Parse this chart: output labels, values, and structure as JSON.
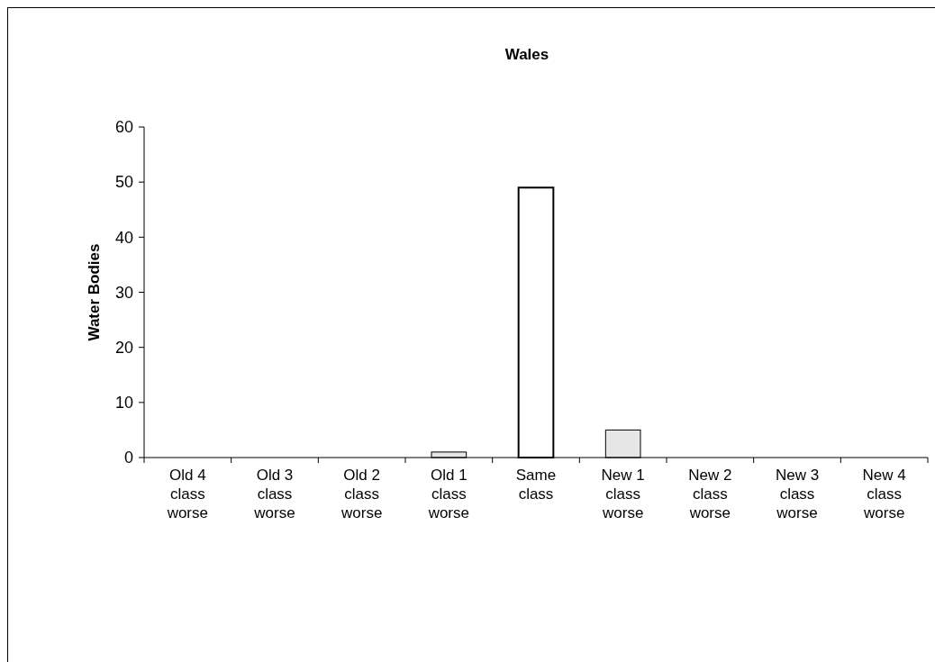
{
  "chart_data": {
    "type": "bar",
    "title": "Wales",
    "ylabel": "Water Bodies",
    "categories": [
      "Old 4 class worse",
      "Old 3 class worse",
      "Old 2 class worse",
      "Old 1 class worse",
      "Same class",
      "New 1 class worse",
      "New 2 class worse",
      "New 3 class worse",
      "New 4 class worse"
    ],
    "values": [
      0,
      0,
      0,
      1,
      49,
      5,
      0,
      0,
      0
    ],
    "colors": [
      "#ffffff",
      "#ffffff",
      "#ffffff",
      "#e6e6e6",
      "#ffffff",
      "#e6e6e6",
      "#ffffff",
      "#ffffff",
      "#ffffff"
    ],
    "ylim": [
      0,
      60
    ],
    "yticks": [
      0,
      10,
      20,
      30,
      40,
      50,
      60
    ],
    "grid": false
  }
}
